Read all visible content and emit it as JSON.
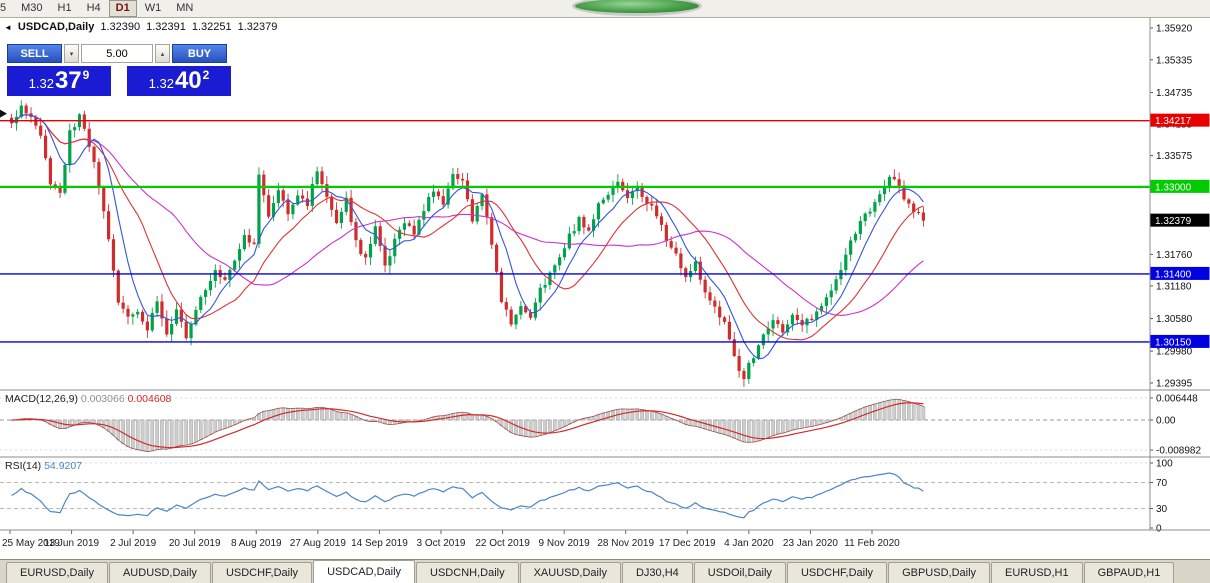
{
  "icons": {
    "caret_up": "▴",
    "caret_down": "▾",
    "header_marker": "◄"
  },
  "toolbar": {
    "timeframes": [
      {
        "label": "5",
        "active": false
      },
      {
        "label": "M30",
        "active": false
      },
      {
        "label": "H1",
        "active": false
      },
      {
        "label": "H4",
        "active": false
      },
      {
        "label": "D1",
        "active": true
      },
      {
        "label": "W1",
        "active": false
      },
      {
        "label": "MN",
        "active": false
      }
    ]
  },
  "header": {
    "symbol": "USDCAD,Daily",
    "open": "1.32390",
    "high": "1.32391",
    "low": "1.32251",
    "close": "1.32379"
  },
  "trade_panel": {
    "sell_label": "SELL",
    "buy_label": "BUY",
    "volume": "5.00",
    "sell_price": {
      "big_prefix": "1.32",
      "big": "37",
      "sup": "9"
    },
    "buy_price": {
      "big_prefix": "1.32",
      "big": "40",
      "sup": "2"
    }
  },
  "price_axis": {
    "labels": [
      "1.35920",
      "1.35335",
      "1.34735",
      "1.34155",
      "1.33575",
      "1.32995",
      "1.32340",
      "1.31760",
      "1.31180",
      "1.30580",
      "1.29980",
      "1.29395"
    ]
  },
  "levels": [
    {
      "value": 1.34217,
      "label": "1.34217",
      "color": "#e60000",
      "text": "#ffffff",
      "lw": 1.4
    },
    {
      "value": 1.33,
      "label": "1.33000",
      "color": "#00cc00",
      "text": "#ffffff",
      "lw": 2.2
    },
    {
      "value": 1.314,
      "label": "1.31400",
      "color": "#0000e0",
      "text": "#ffffff",
      "lw": 1.4
    },
    {
      "value": 1.3015,
      "label": "1.30150",
      "color": "#0000e0",
      "text": "#ffffff",
      "lw": 1.4
    }
  ],
  "current_price": {
    "value": 1.32379,
    "label": "1.32379",
    "color": "#000000",
    "text": "#ffffff"
  },
  "macd": {
    "name": "MACD(12,26,9)",
    "value1": "0.003066",
    "value2": "0.004608",
    "axis": [
      "0.006448",
      "0.00",
      "-0.008982"
    ]
  },
  "rsi": {
    "name": "RSI(14)",
    "value": "54.9207",
    "axis": [
      "100",
      "70",
      "30",
      "0"
    ]
  },
  "date_axis": [
    "25 May 2019",
    "13 Jun 2019",
    "2 Jul 2019",
    "20 Jul 2019",
    "8 Aug 2019",
    "27 Aug 2019",
    "14 Sep 2019",
    "3 Oct 2019",
    "22 Oct 2019",
    "9 Nov 2019",
    "28 Nov 2019",
    "17 Dec 2019",
    "4 Jan 2020",
    "23 Jan 2020",
    "11 Feb 2020"
  ],
  "tabs": [
    {
      "label": "EURUSD,Daily",
      "active": false
    },
    {
      "label": "AUDUSD,Daily",
      "active": false
    },
    {
      "label": "USDCHF,Daily",
      "active": false
    },
    {
      "label": "USDCAD,Daily",
      "active": true
    },
    {
      "label": "USDCNH,Daily",
      "active": false
    },
    {
      "label": "XAUUSD,Daily",
      "active": false
    },
    {
      "label": "DJ30,H4",
      "active": false
    },
    {
      "label": "USDOil,Daily",
      "active": false
    },
    {
      "label": "USDCHF,Daily",
      "active": false
    },
    {
      "label": "GBPUSD,Daily",
      "active": false
    },
    {
      "label": "EURUSD,H1",
      "active": false
    },
    {
      "label": "GBPAUD,H1",
      "active": false
    }
  ],
  "chart_data": {
    "type": "candlestick",
    "symbol": "USDCAD",
    "timeframe": "Daily",
    "visible_range": {
      "start": "25 May 2019",
      "end": "14 Feb 2020"
    },
    "price_range": [
      1.29395,
      1.3592
    ],
    "last_close": 1.32379,
    "candles_count": 189,
    "close_anchors": [
      [
        0,
        1.3415
      ],
      [
        2,
        1.3445
      ],
      [
        4,
        1.343
      ],
      [
        6,
        1.339
      ],
      [
        8,
        1.331
      ],
      [
        10,
        1.3285
      ],
      [
        12,
        1.34
      ],
      [
        14,
        1.343
      ],
      [
        16,
        1.338
      ],
      [
        18,
        1.33
      ],
      [
        20,
        1.32
      ],
      [
        22,
        1.309
      ],
      [
        24,
        1.306
      ],
      [
        26,
        1.307
      ],
      [
        28,
        1.304
      ],
      [
        30,
        1.309
      ],
      [
        32,
        1.3035
      ],
      [
        34,
        1.307
      ],
      [
        36,
        1.3025
      ],
      [
        38,
        1.308
      ],
      [
        40,
        1.311
      ],
      [
        42,
        1.315
      ],
      [
        44,
        1.313
      ],
      [
        46,
        1.317
      ],
      [
        48,
        1.321
      ],
      [
        50,
        1.319
      ],
      [
        51,
        1.332
      ],
      [
        53,
        1.324
      ],
      [
        55,
        1.33
      ],
      [
        57,
        1.3255
      ],
      [
        59,
        1.329
      ],
      [
        61,
        1.327
      ],
      [
        63,
        1.333
      ],
      [
        65,
        1.328
      ],
      [
        67,
        1.324
      ],
      [
        69,
        1.328
      ],
      [
        71,
        1.32
      ],
      [
        73,
        1.3165
      ],
      [
        75,
        1.323
      ],
      [
        77,
        1.315
      ],
      [
        79,
        1.32
      ],
      [
        81,
        1.323
      ],
      [
        83,
        1.3215
      ],
      [
        85,
        1.326
      ],
      [
        87,
        1.329
      ],
      [
        89,
        1.327
      ],
      [
        91,
        1.332
      ],
      [
        93,
        1.331
      ],
      [
        95,
        1.324
      ],
      [
        97,
        1.328
      ],
      [
        99,
        1.32
      ],
      [
        101,
        1.309
      ],
      [
        103,
        1.305
      ],
      [
        105,
        1.308
      ],
      [
        107,
        1.306
      ],
      [
        109,
        1.311
      ],
      [
        111,
        1.314
      ],
      [
        113,
        1.317
      ],
      [
        115,
        1.321
      ],
      [
        117,
        1.324
      ],
      [
        119,
        1.322
      ],
      [
        121,
        1.327
      ],
      [
        123,
        1.329
      ],
      [
        125,
        1.331
      ],
      [
        127,
        1.328
      ],
      [
        129,
        1.33
      ],
      [
        131,
        1.327
      ],
      [
        133,
        1.325
      ],
      [
        135,
        1.32
      ],
      [
        137,
        1.3175
      ],
      [
        139,
        1.313
      ],
      [
        141,
        1.316
      ],
      [
        143,
        1.311
      ],
      [
        145,
        1.3075
      ],
      [
        147,
        1.305
      ],
      [
        149,
        1.2985
      ],
      [
        151,
        1.295
      ],
      [
        153,
        1.299
      ],
      [
        155,
        1.303
      ],
      [
        157,
        1.3055
      ],
      [
        159,
        1.303
      ],
      [
        161,
        1.306
      ],
      [
        163,
        1.3045
      ],
      [
        165,
        1.306
      ],
      [
        167,
        1.3085
      ],
      [
        169,
        1.311
      ],
      [
        171,
        1.315
      ],
      [
        173,
        1.32
      ],
      [
        175,
        1.3235
      ],
      [
        177,
        1.326
      ],
      [
        179,
        1.329
      ],
      [
        181,
        1.332
      ],
      [
        183,
        1.33
      ],
      [
        185,
        1.3265
      ],
      [
        188,
        1.32379
      ]
    ],
    "ma_periods": {
      "blue": 7,
      "red": 16,
      "magenta": 34
    },
    "colors": {
      "up": "#00A24A",
      "down": "#D02C2C",
      "ma_blue": "#3355dd",
      "ma_red": "#dd3333",
      "ma_magenta": "#cc33cc",
      "macd_hist": "#cdcdcd",
      "macd_signal": "#d42a2a",
      "macd_line": "#a35050",
      "rsi": "#4a86c8"
    }
  }
}
